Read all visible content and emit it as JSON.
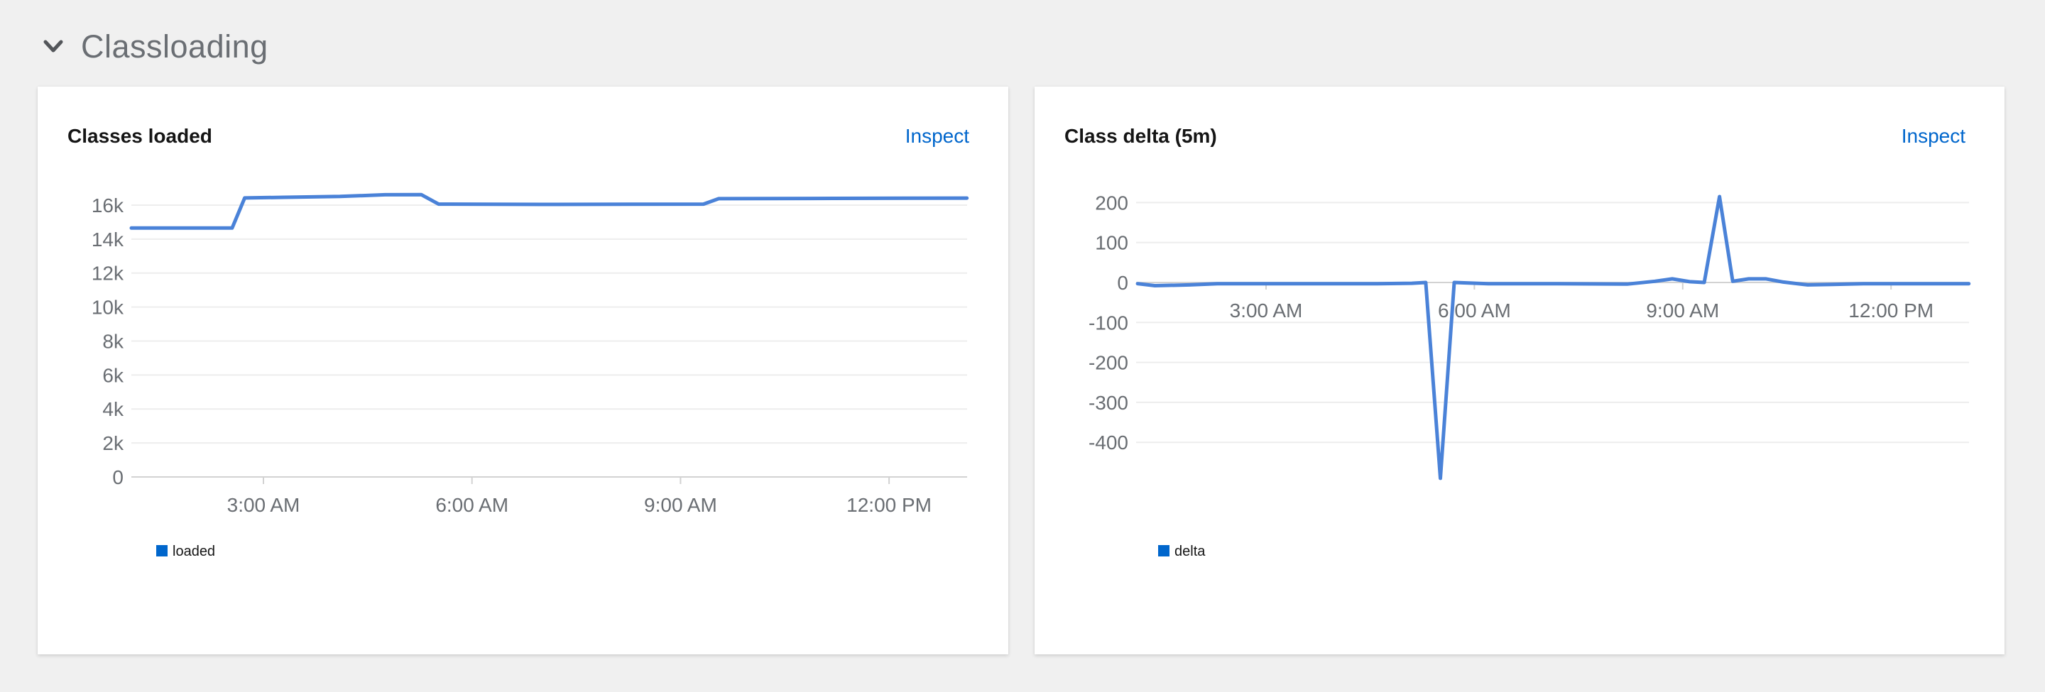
{
  "section": {
    "title": "Classloading",
    "chevron_icon": "chevron-down"
  },
  "cards": [
    {
      "title": "Classes loaded",
      "action_label": "Inspect"
    },
    {
      "title": "Class delta (5m)",
      "action_label": "Inspect"
    }
  ],
  "colors": {
    "page_background": "#f0f0f0",
    "card_background": "#ffffff",
    "section_title": "#6a6e73",
    "chevron": "#53565a",
    "card_title": "#151515",
    "link": "#0066cc",
    "axis_text": "#6a6e73",
    "grid": "#ededed",
    "axis_line": "#d2d2d2",
    "series_line": "#4a82d8",
    "legend_square": "#0066cc"
  },
  "chart_data": [
    {
      "type": "line",
      "title": "Classes loaded",
      "x_axis": {
        "unit": "hours_24",
        "range_hours": [
          1.1,
          13.12
        ],
        "ticks": [
          {
            "t": 3,
            "label": "3:00 AM"
          },
          {
            "t": 6,
            "label": "6:00 AM"
          },
          {
            "t": 9,
            "label": "9:00 AM"
          },
          {
            "t": 12,
            "label": "12:00 PM"
          }
        ]
      },
      "y_axis": {
        "range": [
          0,
          16700
        ],
        "ticks": [
          {
            "v": 0,
            "label": "0"
          },
          {
            "v": 2000,
            "label": "2k"
          },
          {
            "v": 4000,
            "label": "4k"
          },
          {
            "v": 6000,
            "label": "6k"
          },
          {
            "v": 8000,
            "label": "8k"
          },
          {
            "v": 10000,
            "label": "10k"
          },
          {
            "v": 12000,
            "label": "12k"
          },
          {
            "v": 14000,
            "label": "14k"
          },
          {
            "v": 16000,
            "label": "16k"
          }
        ]
      },
      "legend": [
        {
          "label": "loaded",
          "color": "#0066cc"
        }
      ],
      "series": [
        {
          "name": "loaded",
          "color": "#4a82d8",
          "points": [
            [
              1.1,
              14650
            ],
            [
              2.55,
              14650
            ],
            [
              2.73,
              16420
            ],
            [
              3.3,
              16460
            ],
            [
              4.1,
              16510
            ],
            [
              4.75,
              16610
            ],
            [
              5.27,
              16620
            ],
            [
              5.52,
              16060
            ],
            [
              7.2,
              16040
            ],
            [
              9.33,
              16060
            ],
            [
              9.55,
              16380
            ],
            [
              11.2,
              16395
            ],
            [
              13.12,
              16415
            ]
          ]
        }
      ]
    },
    {
      "type": "line",
      "title": "Class delta (5m)",
      "x_axis": {
        "unit": "hours_24",
        "range_hours": [
          1.15,
          13.12
        ],
        "ticks": [
          {
            "t": 3,
            "label": "3:00 AM"
          },
          {
            "t": 6,
            "label": "6:00 AM"
          },
          {
            "t": 9,
            "label": "9:00 AM"
          },
          {
            "t": 12,
            "label": "12:00 PM"
          }
        ]
      },
      "y_axis": {
        "range": [
          -500,
          225
        ],
        "ticks": [
          {
            "v": 200,
            "label": "200"
          },
          {
            "v": 100,
            "label": "100"
          },
          {
            "v": 0,
            "label": "0"
          },
          {
            "v": -100,
            "label": "-100"
          },
          {
            "v": -200,
            "label": "-200"
          },
          {
            "v": -300,
            "label": "-300"
          },
          {
            "v": -400,
            "label": "-400"
          }
        ]
      },
      "legend": [
        {
          "label": "delta",
          "color": "#0066cc"
        }
      ],
      "series": [
        {
          "name": "delta",
          "color": "#4a82d8",
          "points": [
            [
              1.15,
              -3
            ],
            [
              1.4,
              -8
            ],
            [
              1.9,
              -6
            ],
            [
              2.3,
              -3
            ],
            [
              3.0,
              -3
            ],
            [
              3.8,
              -3
            ],
            [
              4.6,
              -3
            ],
            [
              5.1,
              -2
            ],
            [
              5.3,
              0
            ],
            [
              5.51,
              -490
            ],
            [
              5.71,
              0
            ],
            [
              6.2,
              -3
            ],
            [
              7.2,
              -3
            ],
            [
              8.2,
              -4
            ],
            [
              8.6,
              3
            ],
            [
              8.85,
              9
            ],
            [
              9.1,
              2
            ],
            [
              9.31,
              0
            ],
            [
              9.53,
              215
            ],
            [
              9.72,
              3
            ],
            [
              9.95,
              9
            ],
            [
              10.2,
              9
            ],
            [
              10.45,
              1
            ],
            [
              10.8,
              -6
            ],
            [
              11.15,
              -5
            ],
            [
              11.6,
              -3
            ],
            [
              12.2,
              -3
            ],
            [
              12.7,
              -3
            ],
            [
              13.12,
              -3
            ]
          ]
        }
      ]
    }
  ]
}
